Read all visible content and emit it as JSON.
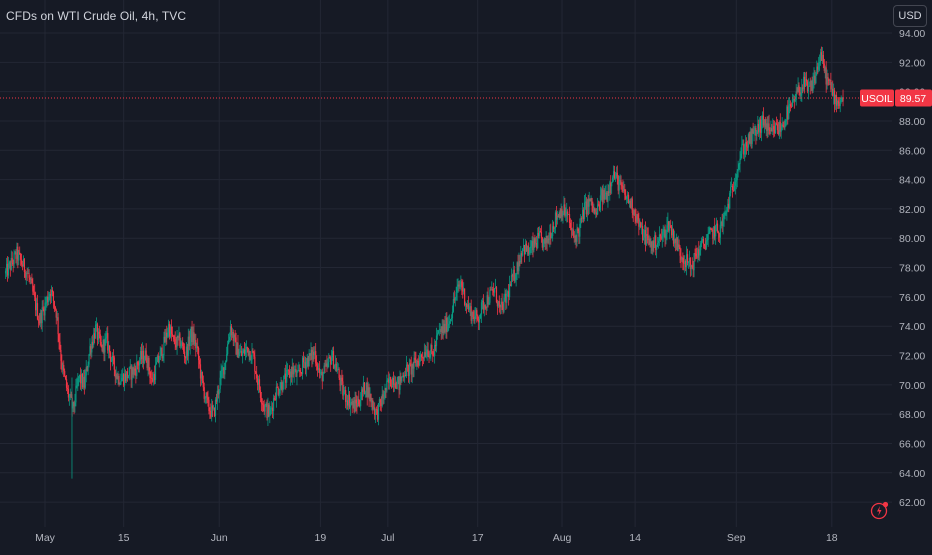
{
  "header": {
    "title": "CFDs on WTI Crude Oil, 4h, TVC",
    "currency_label": "USD"
  },
  "price_tag": {
    "symbol": "USOIL",
    "price": "89.57",
    "price_value": 89.57,
    "color": "#f23645"
  },
  "colors": {
    "up": "#089981",
    "down": "#f23645",
    "grid": "#232734",
    "text": "#b2b5be",
    "background": "#161a25"
  },
  "icons": {
    "flash": "lightning-alert-icon"
  },
  "chart_data": {
    "type": "candlestick",
    "y_axis": {
      "range": [
        61,
        95
      ],
      "ticks": [
        "62.00",
        "64.00",
        "66.00",
        "68.00",
        "70.00",
        "72.00",
        "74.00",
        "76.00",
        "78.00",
        "80.00",
        "82.00",
        "84.00",
        "86.00",
        "88.00",
        "90.00",
        "92.00",
        "94.00"
      ],
      "position": "right"
    },
    "x_axis": {
      "ticks": [
        {
          "label": "May",
          "day": 0
        },
        {
          "label": "15",
          "day": 14
        },
        {
          "label": "Jun",
          "day": 31
        },
        {
          "label": "19",
          "day": 49
        },
        {
          "label": "Jul",
          "day": 61
        },
        {
          "label": "17",
          "day": 77
        },
        {
          "label": "Aug",
          "day": 92
        },
        {
          "label": "14",
          "day": 105
        },
        {
          "label": "Sep",
          "day": 123
        },
        {
          "label": "18",
          "day": 140
        }
      ]
    },
    "grid": true,
    "close_path": [
      [
        -7,
        77.6
      ],
      [
        -5,
        78.9
      ],
      [
        -3,
        77.5
      ],
      [
        -1,
        74.4
      ],
      [
        1,
        76.5
      ],
      [
        2,
        75.0
      ],
      [
        3,
        71.3
      ],
      [
        4,
        69.5
      ],
      [
        5,
        68.3
      ],
      [
        6,
        70.5
      ],
      [
        7,
        70.0
      ],
      [
        8,
        72.5
      ],
      [
        9,
        73.8
      ],
      [
        10,
        72.5
      ],
      [
        11,
        73.0
      ],
      [
        12,
        71.5
      ],
      [
        13,
        70.5
      ],
      [
        14,
        70.5
      ],
      [
        16,
        71.0
      ],
      [
        17,
        71.8
      ],
      [
        18,
        72.0
      ],
      [
        19,
        70.2
      ],
      [
        20,
        71.5
      ],
      [
        21,
        72.5
      ],
      [
        22,
        74.0
      ],
      [
        23,
        72.8
      ],
      [
        24,
        73.0
      ],
      [
        25,
        72.0
      ],
      [
        26,
        73.5
      ],
      [
        27,
        72.5
      ],
      [
        28,
        70.0
      ],
      [
        29,
        68.5
      ],
      [
        30,
        68.0
      ],
      [
        31,
        70.0
      ],
      [
        32,
        71.5
      ],
      [
        33,
        74.0
      ],
      [
        34,
        72.5
      ],
      [
        35,
        72.0
      ],
      [
        36,
        72.5
      ],
      [
        37,
        72.0
      ],
      [
        38,
        70.0
      ],
      [
        39,
        68.5
      ],
      [
        40,
        68.0
      ],
      [
        41,
        69.5
      ],
      [
        42,
        70.0
      ],
      [
        43,
        70.5
      ],
      [
        44,
        71.0
      ],
      [
        45,
        70.5
      ],
      [
        46,
        71.5
      ],
      [
        47,
        71.8
      ],
      [
        48,
        72.2
      ],
      [
        49,
        70.5
      ],
      [
        50,
        71.0
      ],
      [
        51,
        72.0
      ],
      [
        52,
        71.0
      ],
      [
        53,
        69.5
      ],
      [
        54,
        69.0
      ],
      [
        55,
        68.5
      ],
      [
        56,
        69.0
      ],
      [
        57,
        70.0
      ],
      [
        58,
        69.0
      ],
      [
        59,
        68.0
      ],
      [
        60,
        69.0
      ],
      [
        61,
        70.0
      ],
      [
        62,
        70.5
      ],
      [
        63,
        70.0
      ],
      [
        64,
        71.0
      ],
      [
        65,
        71.0
      ],
      [
        66,
        71.5
      ],
      [
        67,
        72.0
      ],
      [
        68,
        72.5
      ],
      [
        69,
        72.0
      ],
      [
        70,
        73.5
      ],
      [
        71,
        73.8
      ],
      [
        72,
        74.5
      ],
      [
        73,
        76.0
      ],
      [
        74,
        77.0
      ],
      [
        75,
        75.5
      ],
      [
        76,
        74.8
      ],
      [
        77,
        74.5
      ],
      [
        78,
        75.5
      ],
      [
        79,
        76.0
      ],
      [
        80,
        76.5
      ],
      [
        81,
        75.0
      ],
      [
        82,
        75.8
      ],
      [
        83,
        77.0
      ],
      [
        84,
        78.0
      ],
      [
        85,
        79.5
      ],
      [
        86,
        79.0
      ],
      [
        87,
        79.5
      ],
      [
        88,
        80.0
      ],
      [
        89,
        79.5
      ],
      [
        90,
        80.5
      ],
      [
        91,
        81.5
      ],
      [
        92,
        82.0
      ],
      [
        93,
        81.5
      ],
      [
        94,
        80.0
      ],
      [
        95,
        80.5
      ],
      [
        96,
        82.0
      ],
      [
        97,
        82.5
      ],
      [
        98,
        81.5
      ],
      [
        99,
        82.8
      ],
      [
        100,
        83.0
      ],
      [
        101,
        84.5
      ],
      [
        102,
        83.8
      ],
      [
        103,
        83.0
      ],
      [
        104,
        82.5
      ],
      [
        105,
        81.8
      ],
      [
        106,
        80.5
      ],
      [
        107,
        80.0
      ],
      [
        108,
        79.5
      ],
      [
        109,
        79.8
      ],
      [
        110,
        80.2
      ],
      [
        111,
        81.0
      ],
      [
        112,
        80.0
      ],
      [
        113,
        79.0
      ],
      [
        114,
        78.5
      ],
      [
        115,
        78.0
      ],
      [
        116,
        79.0
      ],
      [
        117,
        79.5
      ],
      [
        118,
        80.0
      ],
      [
        119,
        80.5
      ],
      [
        120,
        80.5
      ],
      [
        121,
        81.5
      ],
      [
        122,
        83.0
      ],
      [
        123,
        84.5
      ],
      [
        124,
        86.0
      ],
      [
        125,
        86.5
      ],
      [
        126,
        87.0
      ],
      [
        127,
        87.5
      ],
      [
        128,
        88.0
      ],
      [
        129,
        87.0
      ],
      [
        130,
        87.5
      ],
      [
        131,
        87.5
      ],
      [
        132,
        88.5
      ],
      [
        133,
        89.0
      ],
      [
        134,
        90.0
      ],
      [
        135,
        90.5
      ],
      [
        136,
        90.0
      ],
      [
        137,
        91.0
      ],
      [
        138,
        92.5
      ],
      [
        139,
        91.0
      ],
      [
        140,
        90.0
      ],
      [
        141,
        89.3
      ],
      [
        142,
        89.57
      ]
    ]
  }
}
